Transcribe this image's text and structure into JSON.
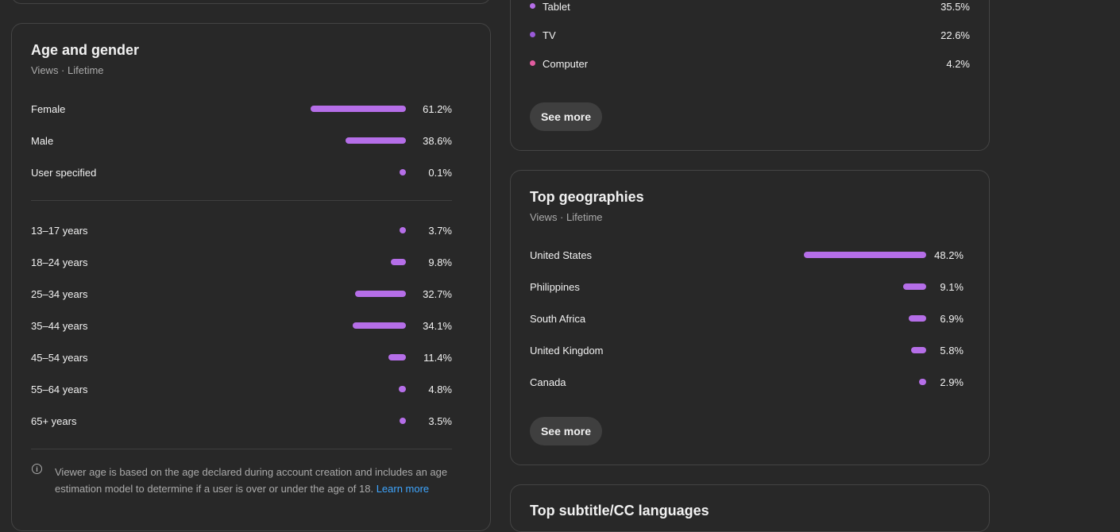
{
  "age_gender": {
    "title": "Age and gender",
    "subtitle": "Views · Lifetime",
    "gender_rows": [
      {
        "label": "Female",
        "value": 61.2,
        "pct": "61.2%"
      },
      {
        "label": "Male",
        "value": 38.6,
        "pct": "38.6%"
      },
      {
        "label": "User specified",
        "value": 0.1,
        "pct": "0.1%"
      }
    ],
    "age_rows": [
      {
        "label": "13–17 years",
        "value": 3.7,
        "pct": "3.7%"
      },
      {
        "label": "18–24 years",
        "value": 9.8,
        "pct": "9.8%"
      },
      {
        "label": "25–34 years",
        "value": 32.7,
        "pct": "32.7%"
      },
      {
        "label": "35–44 years",
        "value": 34.1,
        "pct": "34.1%"
      },
      {
        "label": "45–54 years",
        "value": 11.4,
        "pct": "11.4%"
      },
      {
        "label": "55–64 years",
        "value": 4.8,
        "pct": "4.8%"
      },
      {
        "label": "65+ years",
        "value": 3.5,
        "pct": "3.5%"
      }
    ],
    "note_text": "Viewer age is based on the age declared during account creation and includes an age estimation model to determine if a user is over or under the age of 18.",
    "learn_more": "Learn more"
  },
  "devices": {
    "rows": [
      {
        "label": "Tablet",
        "pct": "35.5%",
        "color": "#b56ee8"
      },
      {
        "label": "TV",
        "pct": "22.6%",
        "color": "#9a5ad9"
      },
      {
        "label": "Computer",
        "pct": "4.2%",
        "color": "#e25ca0"
      }
    ],
    "see_more": "See more"
  },
  "geographies": {
    "title": "Top geographies",
    "subtitle": "Views · Lifetime",
    "rows": [
      {
        "label": "United States",
        "value": 48.2,
        "pct": "48.2%"
      },
      {
        "label": "Philippines",
        "value": 9.1,
        "pct": "9.1%"
      },
      {
        "label": "South Africa",
        "value": 6.9,
        "pct": "6.9%"
      },
      {
        "label": "United Kingdom",
        "value": 5.8,
        "pct": "5.8%"
      },
      {
        "label": "Canada",
        "value": 2.9,
        "pct": "2.9%"
      }
    ],
    "see_more": "See more"
  },
  "bottom_card": {
    "title": "Top subtitle/CC languages"
  },
  "colors": {
    "bar": "#b56ee8",
    "link": "#3ea6ff"
  }
}
